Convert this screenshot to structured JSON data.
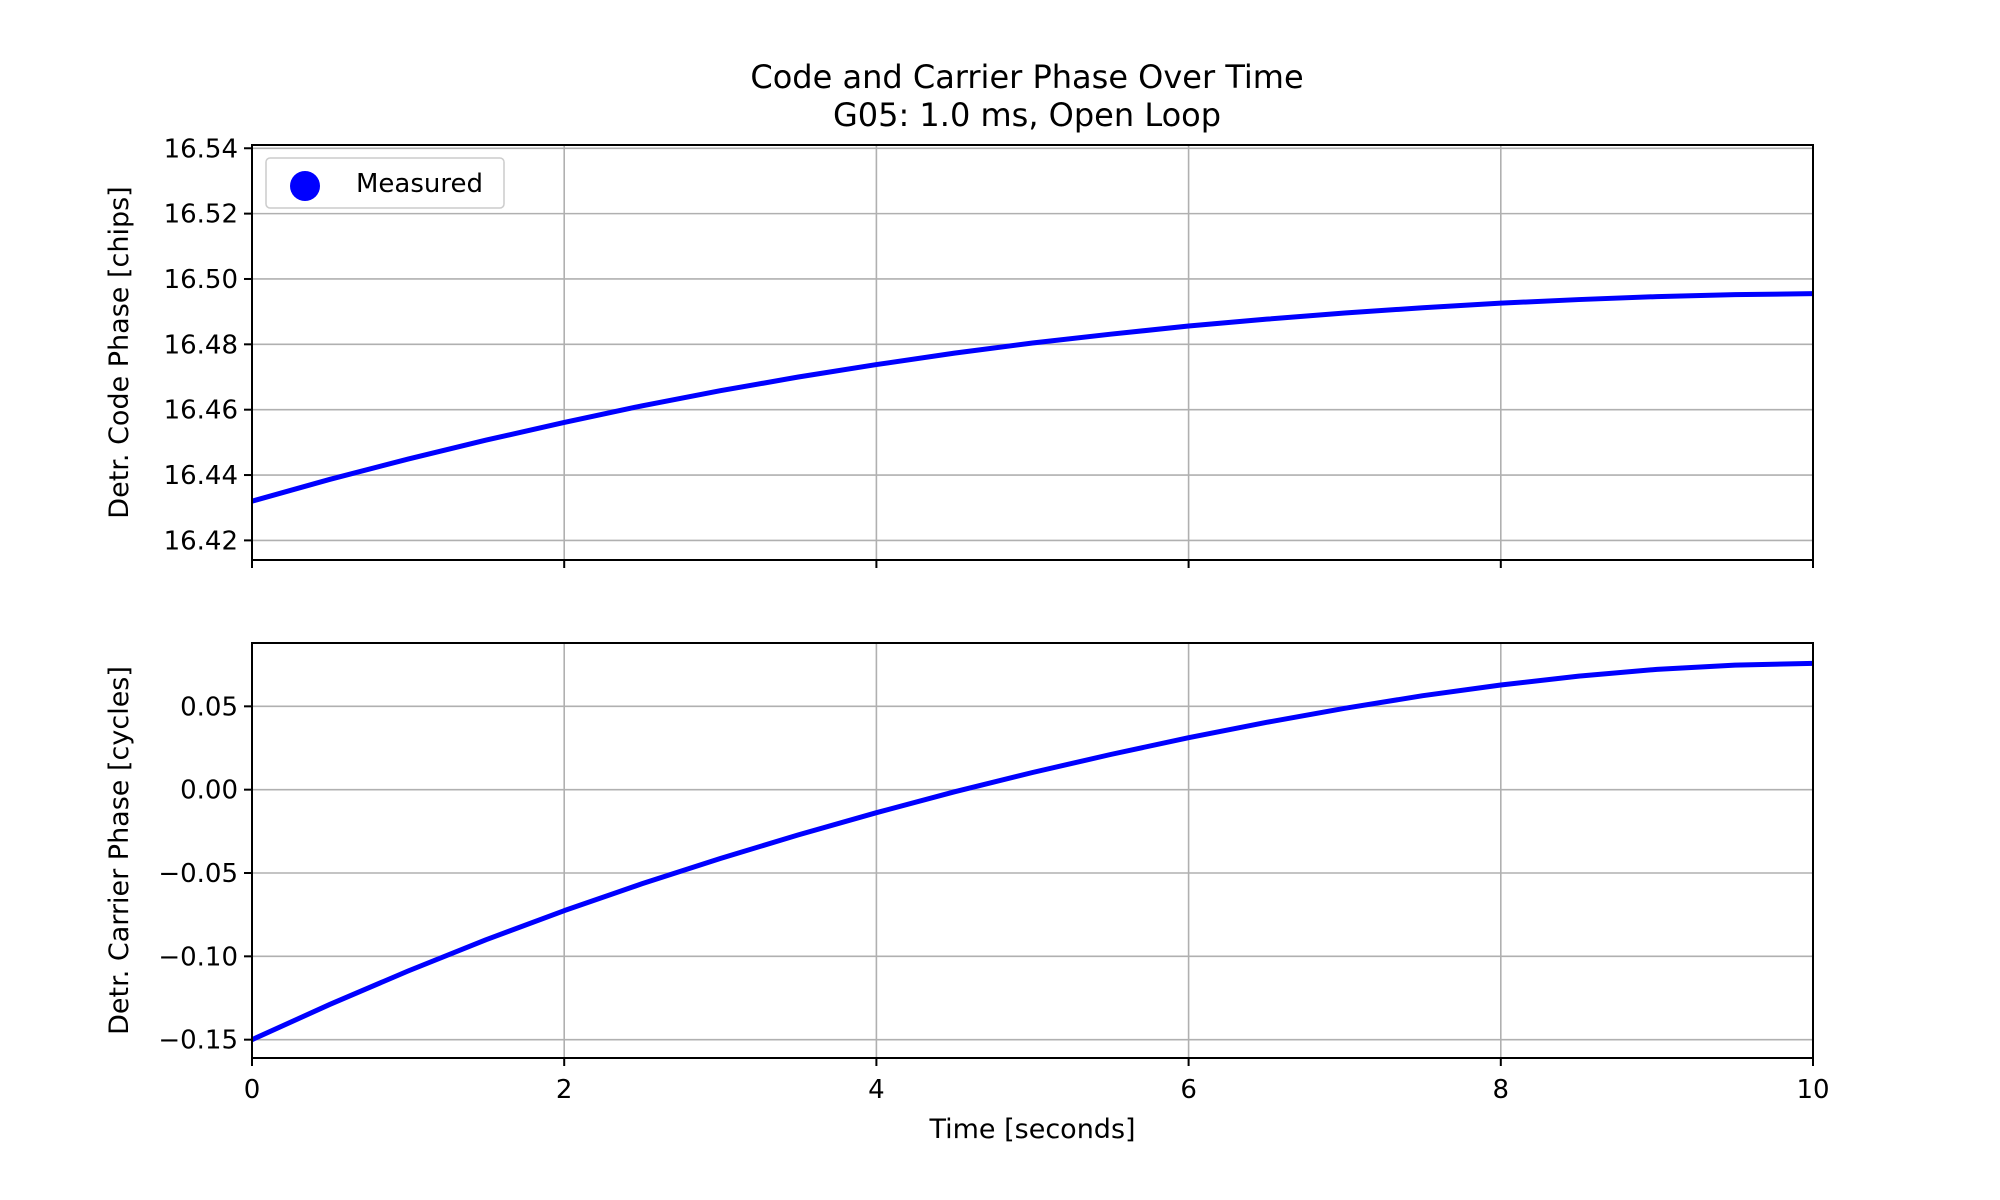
{
  "figure": {
    "title": "Code and Carrier Phase Over Time",
    "subtitle": "G05: 1.0 ms, Open Loop"
  },
  "colors": {
    "series": "#0000ff",
    "grid": "#b0b0b0",
    "axes": "#000000"
  },
  "legend": {
    "label": "Measured",
    "marker": "filled-circle",
    "position": "upper-left"
  },
  "chart_data": [
    {
      "type": "line",
      "panel": "top",
      "title": "Code and Carrier Phase Over Time",
      "subtitle": "G05: 1.0 ms, Open Loop",
      "xlabel": "",
      "ylabel": "Detr. Code Phase [chips]",
      "xlim": [
        0,
        10
      ],
      "ylim": [
        16.414,
        16.541
      ],
      "x_ticks": [
        0,
        2,
        4,
        6,
        8,
        10
      ],
      "y_ticks": [
        16.42,
        16.44,
        16.46,
        16.48,
        16.5,
        16.52,
        16.54
      ],
      "y_tick_labels": [
        "16.42",
        "16.44",
        "16.46",
        "16.48",
        "16.50",
        "16.52",
        "16.54"
      ],
      "show_x_tick_labels": false,
      "grid": true,
      "legend": "upper-left",
      "series": [
        {
          "name": "Measured",
          "x": [
            0,
            0.5,
            1,
            1.5,
            2,
            2.5,
            3,
            3.5,
            4,
            4.5,
            5,
            5.5,
            6,
            6.5,
            7,
            7.5,
            8,
            8.5,
            9,
            9.5,
            10
          ],
          "y": [
            16.432,
            16.4387,
            16.4449,
            16.4507,
            16.4561,
            16.4612,
            16.4658,
            16.47,
            16.4738,
            16.4773,
            16.4804,
            16.4831,
            16.4856,
            16.4877,
            16.4896,
            16.4912,
            16.4926,
            16.4937,
            16.4946,
            16.4952,
            16.4955
          ]
        }
      ]
    },
    {
      "type": "line",
      "panel": "bottom",
      "xlabel": "Time [seconds]",
      "ylabel": "Detr. Carrier Phase [cycles]",
      "xlim": [
        0,
        10
      ],
      "ylim": [
        -0.161,
        0.088
      ],
      "x_ticks": [
        0,
        2,
        4,
        6,
        8,
        10
      ],
      "x_tick_labels": [
        "0",
        "2",
        "4",
        "6",
        "8",
        "10"
      ],
      "y_ticks": [
        -0.15,
        -0.1,
        -0.05,
        0.0,
        0.05
      ],
      "y_tick_labels": [
        "−0.15",
        "−0.10",
        "−0.05",
        "0.00",
        "0.05"
      ],
      "grid": true,
      "series": [
        {
          "name": "Measured",
          "x": [
            0,
            0.5,
            1,
            1.5,
            2,
            2.5,
            3,
            3.5,
            4,
            4.5,
            5,
            5.5,
            6,
            6.5,
            7,
            7.5,
            8,
            8.5,
            9,
            9.5,
            10
          ],
          "y": [
            -0.15,
            -0.1288,
            -0.1088,
            -0.09,
            -0.0726,
            -0.0564,
            -0.0413,
            -0.0271,
            -0.0138,
            -0.0013,
            0.0103,
            0.0211,
            0.0312,
            0.0404,
            0.0488,
            0.0564,
            0.0628,
            0.0681,
            0.0722,
            0.0747,
            0.0758
          ]
        }
      ]
    }
  ]
}
